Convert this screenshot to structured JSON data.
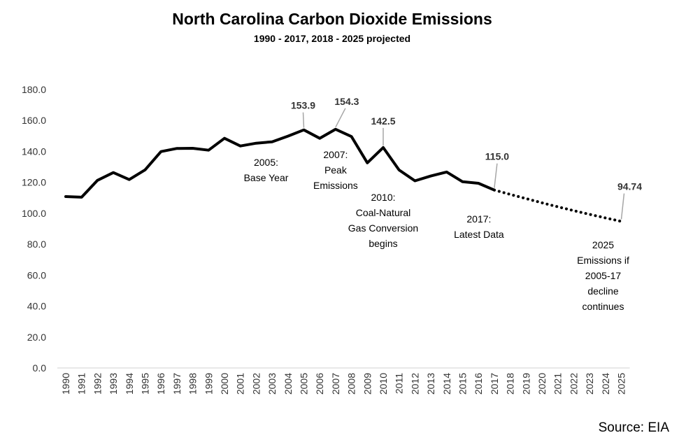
{
  "chart_data": {
    "type": "line",
    "title": "North Carolina Carbon Dioxide Emissions",
    "subtitle": "1990 - 2017, 2018 - 2025 projected",
    "xlabel": "",
    "ylabel": "",
    "ylim": [
      0,
      180
    ],
    "yticks": [
      "0.0",
      "20.0",
      "40.0",
      "60.0",
      "80.0",
      "100.0",
      "120.0",
      "140.0",
      "160.0",
      "180.0"
    ],
    "grid": false,
    "legend": "none",
    "categories": [
      "1990",
      "1991",
      "1992",
      "1993",
      "1994",
      "1995",
      "1996",
      "1997",
      "1998",
      "1999",
      "2000",
      "2001",
      "2002",
      "2003",
      "2004",
      "2005",
      "2006",
      "2007",
      "2008",
      "2009",
      "2010",
      "2011",
      "2012",
      "2013",
      "2014",
      "2015",
      "2016",
      "2017",
      "2018",
      "2019",
      "2020",
      "2021",
      "2022",
      "2023",
      "2024",
      "2025"
    ],
    "series": [
      {
        "style": "solid",
        "color": "#000000",
        "x": [
          "1990",
          "1991",
          "1992",
          "1993",
          "1994",
          "1995",
          "1996",
          "1997",
          "1998",
          "1999",
          "2000",
          "2001",
          "2002",
          "2003",
          "2004",
          "2005",
          "2006",
          "2007",
          "2008",
          "2009",
          "2010",
          "2011",
          "2012",
          "2013",
          "2014",
          "2015",
          "2016",
          "2017"
        ],
        "values": [
          110.8,
          110.4,
          121.3,
          126.3,
          121.8,
          128.1,
          139.9,
          141.9,
          142.0,
          140.8,
          148.5,
          143.5,
          145.3,
          146.2,
          149.9,
          153.9,
          148.5,
          154.3,
          149.6,
          132.6,
          142.5,
          128.0,
          121.0,
          124.1,
          126.7,
          120.4,
          119.4,
          115.0
        ]
      },
      {
        "style": "dotted",
        "color": "#000000",
        "x": [
          "2017",
          "2018",
          "2019",
          "2020",
          "2021",
          "2022",
          "2023",
          "2024",
          "2025"
        ],
        "values": [
          115.0,
          112.2,
          109.5,
          106.8,
          104.2,
          101.7,
          99.3,
          97.0,
          94.74
        ]
      }
    ],
    "value_labels": [
      {
        "x": "2005",
        "value": 153.9,
        "text": "153.9"
      },
      {
        "x": "2007",
        "value": 154.3,
        "text": "154.3"
      },
      {
        "x": "2010",
        "value": 142.5,
        "text": "142.5"
      },
      {
        "x": "2017",
        "value": 115.0,
        "text": "115.0"
      },
      {
        "x": "2025",
        "value": 94.74,
        "text": "94.74"
      }
    ],
    "annotations": [
      {
        "x": "2005",
        "lines": [
          "2005:",
          "Base Year"
        ]
      },
      {
        "x": "2007",
        "lines": [
          "2007:",
          "Peak",
          "Emissions"
        ]
      },
      {
        "x": "2010",
        "lines": [
          "2010:",
          "Coal-Natural",
          "Gas Conversion",
          "begins"
        ]
      },
      {
        "x": "2017",
        "lines": [
          "2017:",
          "Latest Data"
        ]
      },
      {
        "x": "2025",
        "lines": [
          "2025",
          "Emissions if",
          "2005-17",
          "decline",
          "continues"
        ]
      }
    ],
    "source": "Source: EIA"
  }
}
